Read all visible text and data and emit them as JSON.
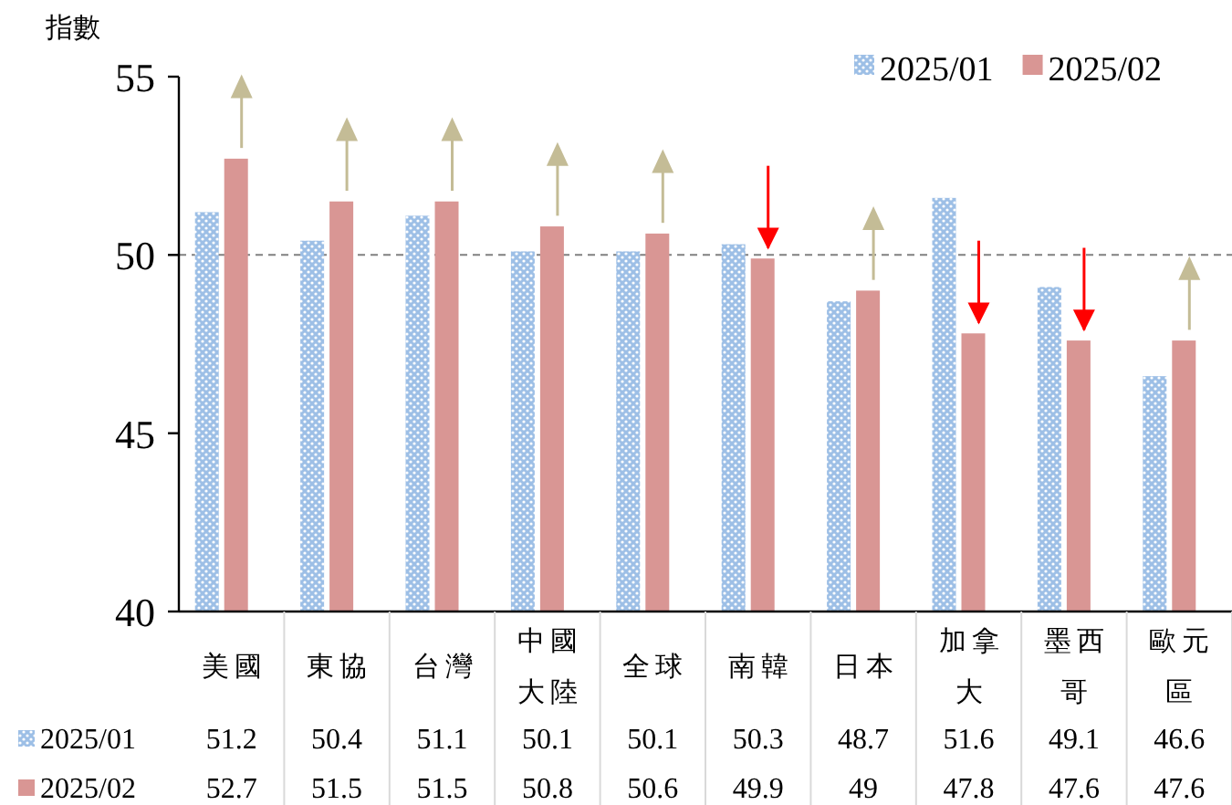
{
  "chart_data": {
    "type": "bar",
    "ylabel": "指數",
    "categories": [
      "美國",
      "東協",
      "台灣",
      "中國大陸",
      "全球",
      "南韓",
      "日本",
      "加拿大",
      "墨西哥",
      "歐元區"
    ],
    "series": [
      {
        "name": "2025/01",
        "color": "#9dbfe6",
        "values": [
          51.2,
          50.4,
          51.1,
          50.1,
          50.1,
          50.3,
          48.7,
          51.6,
          49.1,
          46.6
        ]
      },
      {
        "name": "2025/02",
        "color": "#d99694",
        "values": [
          52.7,
          51.5,
          51.5,
          50.8,
          50.6,
          49.9,
          49,
          47.8,
          47.6,
          47.6
        ]
      }
    ],
    "ylim": [
      40,
      55
    ],
    "yticks": [
      40,
      45,
      50,
      55
    ],
    "ref_lines": [
      {
        "axis": "y",
        "value": 50,
        "color": "#808080",
        "line_style": "dashed"
      }
    ],
    "legend": "top right",
    "data_labels": true,
    "grid": false
  }
}
